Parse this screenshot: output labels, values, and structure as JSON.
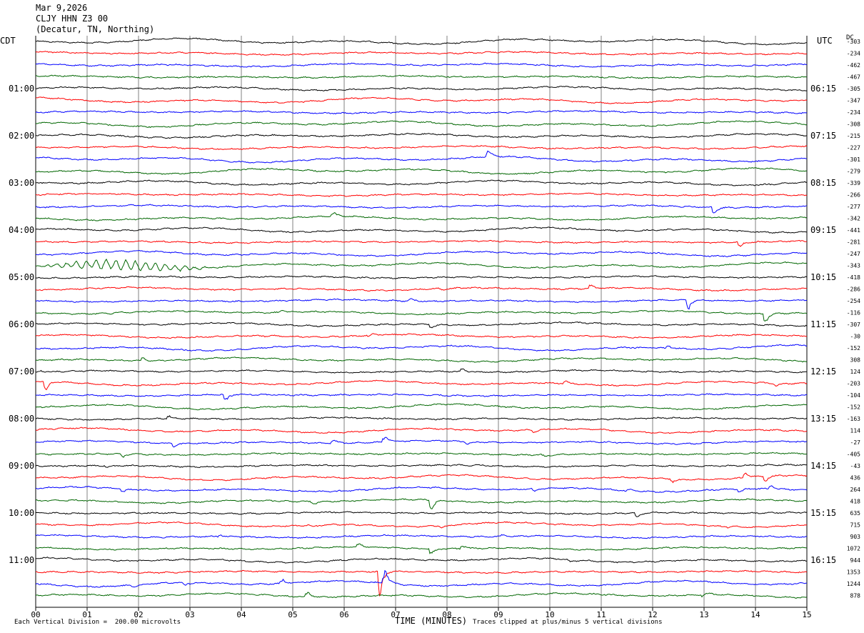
{
  "header": {
    "date": "Mar 9,2026",
    "station": "CLJY HHN Z3 00",
    "location": "(Decatur, TN, Northing)"
  },
  "left_axis_label": "CDT",
  "right_axis_label": "UTC",
  "dc_label": "DC",
  "footer": {
    "xlabel": "TIME (MINUTES)",
    "vertical_division": "Each Vertical Division =  200.00 microvolts",
    "clip_note": "Traces clipped at plus/minus 5 vertical divisions"
  },
  "colors": {
    "trace_cycle": [
      "#000000",
      "#ff0000",
      "#0000ff",
      "#006600"
    ],
    "grid": "#808080"
  },
  "chart_data": {
    "type": "line",
    "xlabel": "TIME (MINUTES)",
    "xlim": [
      0,
      15
    ],
    "x_ticks": [
      "00",
      "01",
      "02",
      "03",
      "04",
      "05",
      "06",
      "07",
      "08",
      "09",
      "10",
      "11",
      "12",
      "13",
      "14",
      "15"
    ],
    "left_ticks": [
      {
        "row": 4,
        "label": "01:00"
      },
      {
        "row": 8,
        "label": "02:00"
      },
      {
        "row": 12,
        "label": "03:00"
      },
      {
        "row": 16,
        "label": "04:00"
      },
      {
        "row": 20,
        "label": "05:00"
      },
      {
        "row": 24,
        "label": "06:00"
      },
      {
        "row": 28,
        "label": "07:00"
      },
      {
        "row": 32,
        "label": "08:00"
      },
      {
        "row": 36,
        "label": "09:00"
      },
      {
        "row": 40,
        "label": "10:00"
      },
      {
        "row": 44,
        "label": "11:00"
      }
    ],
    "right_ticks": [
      {
        "row": 4,
        "label": "06:15"
      },
      {
        "row": 8,
        "label": "07:15"
      },
      {
        "row": 12,
        "label": "08:15"
      },
      {
        "row": 16,
        "label": "09:15"
      },
      {
        "row": 20,
        "label": "10:15"
      },
      {
        "row": 24,
        "label": "11:15"
      },
      {
        "row": 28,
        "label": "12:15"
      },
      {
        "row": 32,
        "label": "13:15"
      },
      {
        "row": 36,
        "label": "14:15"
      },
      {
        "row": 40,
        "label": "15:15"
      },
      {
        "row": 44,
        "label": "16:15"
      }
    ],
    "dc_offsets": [
      "-303",
      "-234",
      "-462",
      "-467",
      "-305",
      "-347",
      "-234",
      "-308",
      "-215",
      "-227",
      "-301",
      "-279",
      "-339",
      "-266",
      "-277",
      "-342",
      "-441",
      "-281",
      "-247",
      "-343",
      "-418",
      "-286",
      "-254",
      "-116",
      "-307",
      "-30",
      "-152",
      "308",
      "124",
      "-203",
      "-104",
      "-152",
      "-163",
      "114",
      "-27",
      "-405",
      "-43",
      "436",
      "264",
      "418",
      "635",
      "715",
      "903",
      "1072",
      "944",
      "1353",
      "1244",
      "878"
    ],
    "events": [
      {
        "row": 10,
        "minute": 8.8,
        "amp": 0.7
      },
      {
        "row": 14,
        "minute": 13.2,
        "amp": 0.7
      },
      {
        "row": 15,
        "minute": 5.8,
        "amp": 0.4
      },
      {
        "row": 17,
        "minute": 13.7,
        "amp": 0.5
      },
      {
        "row": 21,
        "minute": 7.9,
        "amp": 0.3
      },
      {
        "row": 21,
        "minute": 10.8,
        "amp": 0.4
      },
      {
        "row": 22,
        "minute": 7.3,
        "amp": 0.3
      },
      {
        "row": 22,
        "minute": 12.7,
        "amp": 0.9
      },
      {
        "row": 23,
        "minute": 1.5,
        "amp": 0.3
      },
      {
        "row": 23,
        "minute": 4.8,
        "amp": 0.3
      },
      {
        "row": 23,
        "minute": 14.2,
        "amp": 1.0
      },
      {
        "row": 24,
        "minute": 7.7,
        "amp": 0.4
      },
      {
        "row": 25,
        "minute": 4.0,
        "amp": 0.4
      },
      {
        "row": 25,
        "minute": 4.5,
        "amp": 0.3
      },
      {
        "row": 25,
        "minute": 6.5,
        "amp": 0.9
      },
      {
        "row": 26,
        "minute": 12.3,
        "amp": 0.3
      },
      {
        "row": 27,
        "minute": 2.1,
        "amp": 0.8
      },
      {
        "row": 28,
        "minute": 0.1,
        "amp": 0.3
      },
      {
        "row": 28,
        "minute": 8.3,
        "amp": 0.4
      },
      {
        "row": 28,
        "minute": 13.5,
        "amp": 0.5
      },
      {
        "row": 29,
        "minute": 0.2,
        "amp": 1.0
      },
      {
        "row": 29,
        "minute": 10.3,
        "amp": 0.3
      },
      {
        "row": 29,
        "minute": 14.4,
        "amp": 0.5
      },
      {
        "row": 30,
        "minute": 3.7,
        "amp": 0.7
      },
      {
        "row": 32,
        "minute": 2.6,
        "amp": 0.6
      },
      {
        "row": 32,
        "minute": 15.0,
        "amp": 0.8
      },
      {
        "row": 33,
        "minute": 9.7,
        "amp": 0.3
      },
      {
        "row": 34,
        "minute": 2.7,
        "amp": 0.4
      },
      {
        "row": 34,
        "minute": 5.8,
        "amp": 0.4
      },
      {
        "row": 34,
        "minute": 6.8,
        "amp": 0.6
      },
      {
        "row": 34,
        "minute": 8.4,
        "amp": 0.5
      },
      {
        "row": 35,
        "minute": 1.7,
        "amp": 0.3
      },
      {
        "row": 35,
        "minute": 9.9,
        "amp": 0.3
      },
      {
        "row": 36,
        "minute": 1.4,
        "amp": 0.3
      },
      {
        "row": 36,
        "minute": 8.5,
        "amp": 0.3
      },
      {
        "row": 36,
        "minute": 13.0,
        "amp": 0.3
      },
      {
        "row": 37,
        "minute": 12.4,
        "amp": 0.5
      },
      {
        "row": 37,
        "minute": 13.8,
        "amp": 0.6
      },
      {
        "row": 37,
        "minute": 14.2,
        "amp": 0.5
      },
      {
        "row": 38,
        "minute": 1.7,
        "amp": 0.4
      },
      {
        "row": 38,
        "minute": 9.7,
        "amp": 0.3
      },
      {
        "row": 38,
        "minute": 11.5,
        "amp": 0.9
      },
      {
        "row": 38,
        "minute": 13.7,
        "amp": 0.4
      },
      {
        "row": 38,
        "minute": 14.3,
        "amp": 0.4
      },
      {
        "row": 39,
        "minute": 3.5,
        "amp": 0.3
      },
      {
        "row": 39,
        "minute": 5.4,
        "amp": 0.4
      },
      {
        "row": 39,
        "minute": 7.7,
        "amp": 1.0
      },
      {
        "row": 40,
        "minute": 11.7,
        "amp": 0.6
      },
      {
        "row": 41,
        "minute": 5.4,
        "amp": 0.4
      },
      {
        "row": 41,
        "minute": 7.9,
        "amp": 0.4
      },
      {
        "row": 41,
        "minute": 13.5,
        "amp": 0.5
      },
      {
        "row": 42,
        "minute": 3.6,
        "amp": 0.3
      },
      {
        "row": 42,
        "minute": 9.1,
        "amp": 0.3
      },
      {
        "row": 42,
        "minute": 14.0,
        "amp": 0.3
      },
      {
        "row": 43,
        "minute": 6.3,
        "amp": 0.4
      },
      {
        "row": 43,
        "minute": 7.7,
        "amp": 0.7
      },
      {
        "row": 43,
        "minute": 8.3,
        "amp": 0.4
      },
      {
        "row": 44,
        "minute": 10.4,
        "amp": 0.4
      },
      {
        "row": 45,
        "minute": 6.7,
        "amp": 2.6
      },
      {
        "row": 46,
        "minute": 1.9,
        "amp": 0.4
      },
      {
        "row": 46,
        "minute": 2.9,
        "amp": 0.5
      },
      {
        "row": 46,
        "minute": 4.8,
        "amp": 0.4
      },
      {
        "row": 46,
        "minute": 6.8,
        "amp": 1.4
      },
      {
        "row": 47,
        "minute": 5.3,
        "amp": 0.5
      },
      {
        "row": 47,
        "minute": 13.0,
        "amp": 1.0
      }
    ],
    "long_period": [
      {
        "row": 19,
        "start": 0.0,
        "end": 3.5,
        "amp": 0.45
      }
    ]
  }
}
